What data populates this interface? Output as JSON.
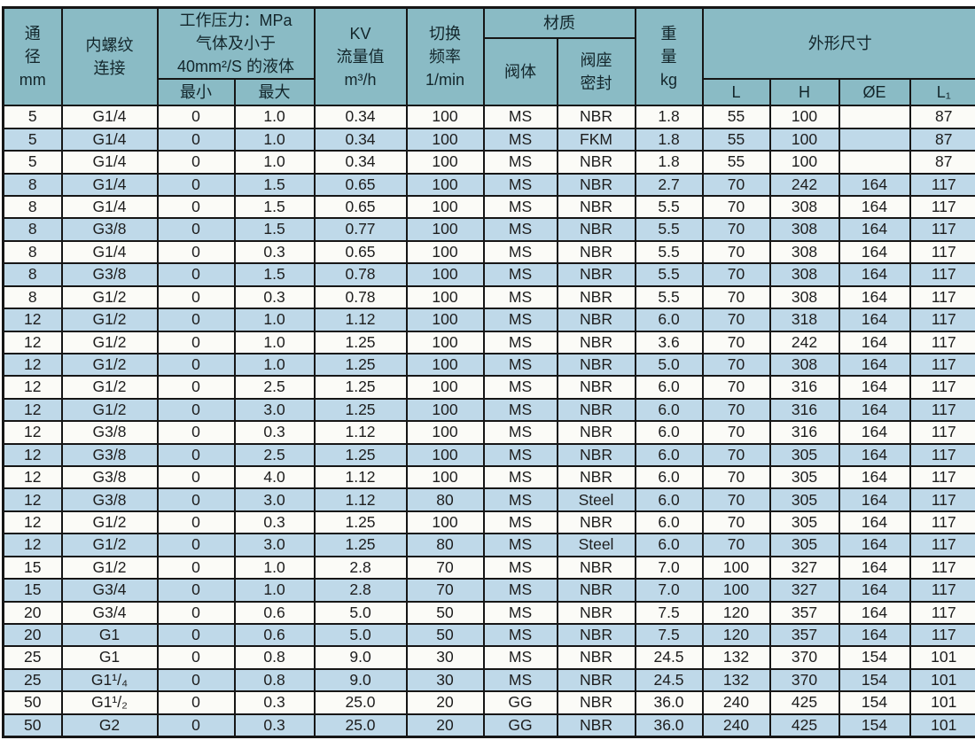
{
  "colors": {
    "header_bg": "#8ABBC5",
    "row_odd": "#FBFBF7",
    "row_even": "#BFD9E9",
    "border": "#161616",
    "text": "#1D1D1D"
  },
  "table": {
    "header": {
      "diameter": "通\n径\nmm",
      "thread": "内螺纹\n连接",
      "pressure": "工作压力：MPa\n气体及小于\n40mm²/S 的液体",
      "pressure_min": "最小",
      "pressure_max": "最大",
      "kv": "KV\n流量值\nm³/h",
      "frequency": "切换\n频率\n1/min",
      "material": "材质",
      "valve_body": "阀体",
      "seat_seal": "阀座\n密封",
      "weight": "重\n量\nkg",
      "dimensions": "外形尺寸",
      "dim_l": "L",
      "dim_h": "H",
      "dim_oe": "ØE",
      "dim_l1": "L₁"
    },
    "rows": [
      [
        "5",
        "G1/4",
        "0",
        "1.0",
        "0.34",
        "100",
        "MS",
        "NBR",
        "1.8",
        "55",
        "100",
        "",
        "87"
      ],
      [
        "5",
        "G1/4",
        "0",
        "1.0",
        "0.34",
        "100",
        "MS",
        "FKM",
        "1.8",
        "55",
        "100",
        "",
        "87"
      ],
      [
        "5",
        "G1/4",
        "0",
        "1.0",
        "0.34",
        "100",
        "MS",
        "NBR",
        "1.8",
        "55",
        "100",
        "",
        "87"
      ],
      [
        "8",
        "G1/4",
        "0",
        "1.5",
        "0.65",
        "100",
        "MS",
        "NBR",
        "2.7",
        "70",
        "242",
        "164",
        "117"
      ],
      [
        "8",
        "G1/4",
        "0",
        "1.5",
        "0.65",
        "100",
        "MS",
        "NBR",
        "5.5",
        "70",
        "308",
        "164",
        "117"
      ],
      [
        "8",
        "G3/8",
        "0",
        "1.5",
        "0.77",
        "100",
        "MS",
        "NBR",
        "5.5",
        "70",
        "308",
        "164",
        "117"
      ],
      [
        "8",
        "G1/4",
        "0",
        "0.3",
        "0.65",
        "100",
        "MS",
        "NBR",
        "5.5",
        "70",
        "308",
        "164",
        "117"
      ],
      [
        "8",
        "G3/8",
        "0",
        "1.5",
        "0.78",
        "100",
        "MS",
        "NBR",
        "5.5",
        "70",
        "308",
        "164",
        "117"
      ],
      [
        "8",
        "G1/2",
        "0",
        "0.3",
        "0.78",
        "100",
        "MS",
        "NBR",
        "5.5",
        "70",
        "308",
        "164",
        "117"
      ],
      [
        "12",
        "G1/2",
        "0",
        "1.0",
        "1.12",
        "100",
        "MS",
        "NBR",
        "6.0",
        "70",
        "318",
        "164",
        "117"
      ],
      [
        "12",
        "G1/2",
        "0",
        "1.0",
        "1.25",
        "100",
        "MS",
        "NBR",
        "3.6",
        "70",
        "242",
        "164",
        "117"
      ],
      [
        "12",
        "G1/2",
        "0",
        "1.0",
        "1.25",
        "100",
        "MS",
        "NBR",
        "5.0",
        "70",
        "308",
        "164",
        "117"
      ],
      [
        "12",
        "G1/2",
        "0",
        "2.5",
        "1.25",
        "100",
        "MS",
        "NBR",
        "6.0",
        "70",
        "316",
        "164",
        "117"
      ],
      [
        "12",
        "G1/2",
        "0",
        "3.0",
        "1.25",
        "100",
        "MS",
        "NBR",
        "6.0",
        "70",
        "316",
        "164",
        "117"
      ],
      [
        "12",
        "G3/8",
        "0",
        "0.3",
        "1.12",
        "100",
        "MS",
        "NBR",
        "6.0",
        "70",
        "316",
        "164",
        "117"
      ],
      [
        "12",
        "G3/8",
        "0",
        "2.5",
        "1.25",
        "100",
        "MS",
        "NBR",
        "6.0",
        "70",
        "305",
        "164",
        "117"
      ],
      [
        "12",
        "G3/8",
        "0",
        "4.0",
        "1.12",
        "100",
        "MS",
        "NBR",
        "6.0",
        "70",
        "305",
        "164",
        "117"
      ],
      [
        "12",
        "G3/8",
        "0",
        "3.0",
        "1.12",
        "80",
        "MS",
        "Steel",
        "6.0",
        "70",
        "305",
        "164",
        "117"
      ],
      [
        "12",
        "G1/2",
        "0",
        "0.3",
        "1.25",
        "100",
        "MS",
        "NBR",
        "6.0",
        "70",
        "305",
        "164",
        "117"
      ],
      [
        "12",
        "G1/2",
        "0",
        "3.0",
        "1.25",
        "80",
        "MS",
        "Steel",
        "6.0",
        "70",
        "305",
        "164",
        "117"
      ],
      [
        "15",
        "G1/2",
        "0",
        "1.0",
        "2.8",
        "70",
        "MS",
        "NBR",
        "7.0",
        "100",
        "327",
        "164",
        "117"
      ],
      [
        "15",
        "G3/4",
        "0",
        "1.0",
        "2.8",
        "70",
        "MS",
        "NBR",
        "7.0",
        "100",
        "327",
        "164",
        "117"
      ],
      [
        "20",
        "G3/4",
        "0",
        "0.6",
        "5.0",
        "50",
        "MS",
        "NBR",
        "7.5",
        "120",
        "357",
        "164",
        "117"
      ],
      [
        "20",
        "G1",
        "0",
        "0.6",
        "5.0",
        "50",
        "MS",
        "NBR",
        "7.5",
        "120",
        "357",
        "164",
        "117"
      ],
      [
        "25",
        "G1",
        "0",
        "0.8",
        "9.0",
        "30",
        "MS",
        "NBR",
        "24.5",
        "132",
        "370",
        "154",
        "101"
      ],
      [
        "25",
        "G1¹/₄",
        "0",
        "0.8",
        "9.0",
        "30",
        "MS",
        "NBR",
        "24.5",
        "132",
        "370",
        "154",
        "101"
      ],
      [
        "50",
        "G1¹/₂",
        "0",
        "0.3",
        "25.0",
        "20",
        "GG",
        "NBR",
        "36.0",
        "240",
        "425",
        "154",
        "101"
      ],
      [
        "50",
        "G2",
        "0",
        "0.3",
        "25.0",
        "20",
        "GG",
        "NBR",
        "36.0",
        "240",
        "425",
        "154",
        "101"
      ]
    ]
  }
}
